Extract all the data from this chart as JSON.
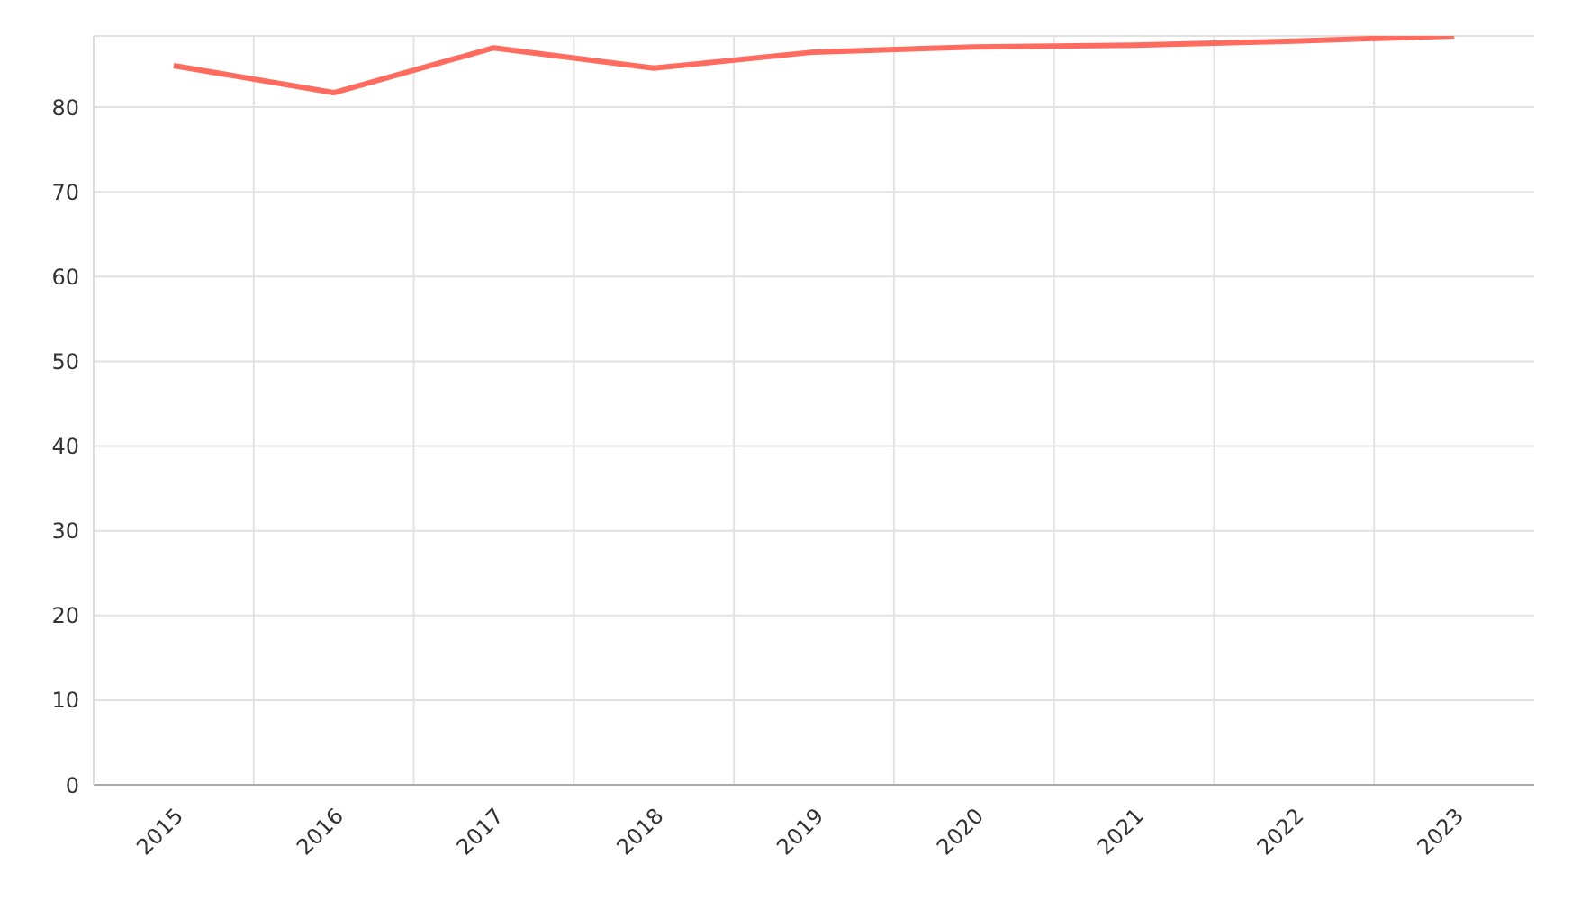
{
  "chart_data": {
    "type": "line",
    "categories": [
      "2015",
      "2016",
      "2017",
      "2018",
      "2019",
      "2020",
      "2021",
      "2022",
      "2023"
    ],
    "values": [
      84.9,
      81.7,
      87.0,
      84.6,
      86.5,
      87.1,
      87.3,
      87.8,
      88.4
    ],
    "color": "#ff6b5e",
    "ylim": [
      0,
      88.4
    ],
    "yticks": [
      0,
      10,
      20,
      30,
      40,
      50,
      60,
      70,
      80
    ],
    "grid": true
  }
}
